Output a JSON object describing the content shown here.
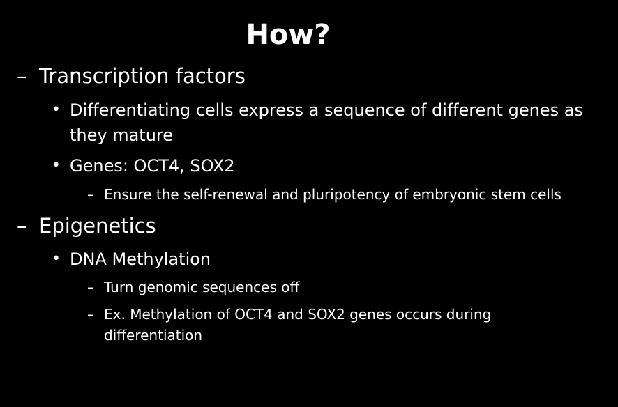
{
  "slide": {
    "title": "How?",
    "bullets": [
      {
        "marker": "–",
        "text": "Transcription factors",
        "children": [
          {
            "marker": "•",
            "text": "Differentiating cells express a sequence of different genes as they mature"
          },
          {
            "marker": "•",
            "text": "Genes: OCT4, SOX2",
            "children": [
              {
                "marker": "–",
                "text": "Ensure the self-renewal and pluripotency of embryonic stem cells"
              }
            ]
          }
        ]
      },
      {
        "marker": "–",
        "text": "Epigenetics",
        "children": [
          {
            "marker": "•",
            "text": "DNA Methylation",
            "children": [
              {
                "marker": "–",
                "text": "Turn genomic sequences off"
              },
              {
                "marker": "–",
                "text": "Ex. Methylation of OCT4 and SOX2 genes occurs during differentiation"
              }
            ]
          }
        ]
      }
    ]
  }
}
